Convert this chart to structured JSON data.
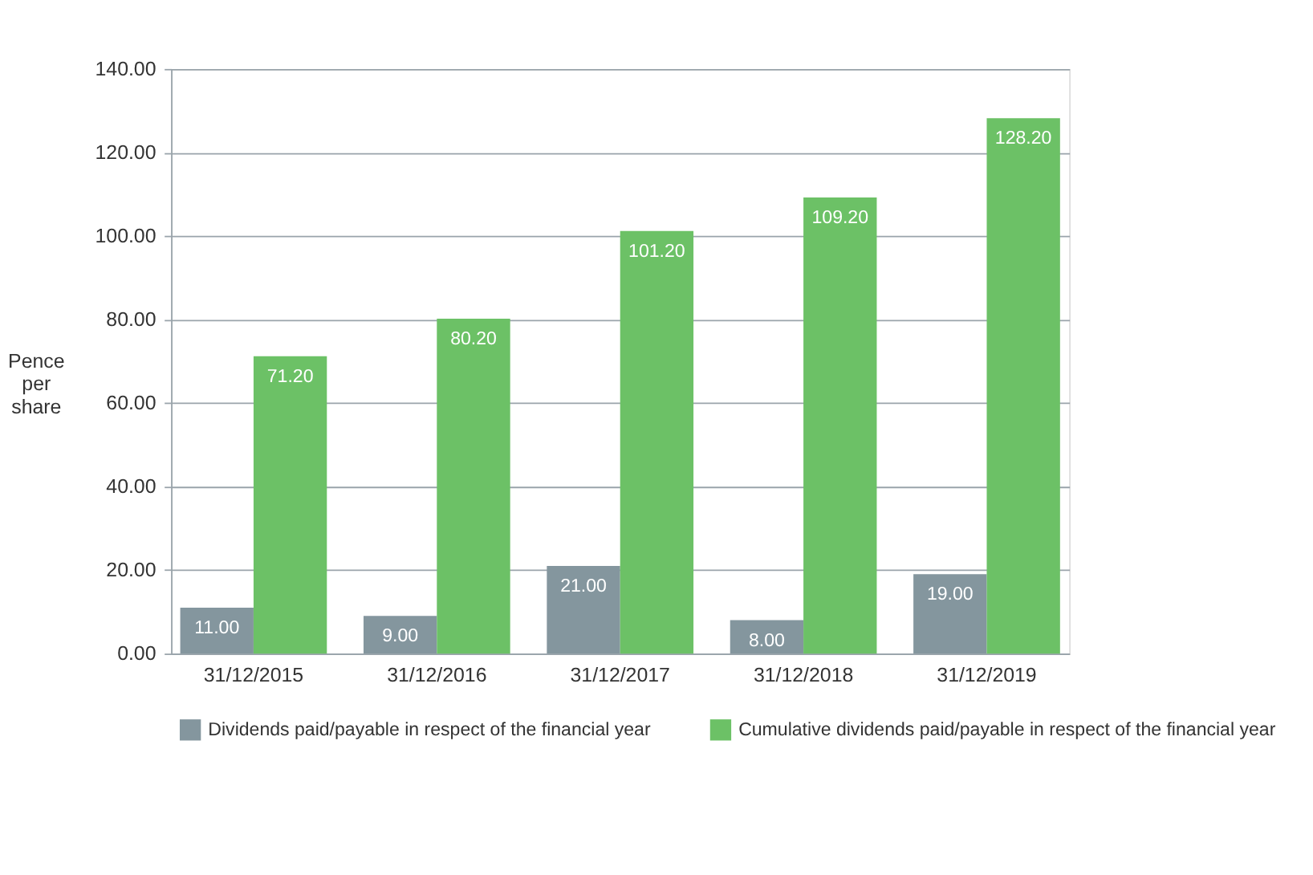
{
  "chart_data": {
    "type": "bar",
    "ylabel": "Pence per share",
    "categories": [
      "31/12/2015",
      "31/12/2016",
      "31/12/2017",
      "31/12/2018",
      "31/12/2019"
    ],
    "series": [
      {
        "name": "Dividends paid/payable in respect of the financial year",
        "color": "#84969e",
        "values": [
          11.0,
          9.0,
          21.0,
          8.0,
          19.0
        ]
      },
      {
        "name": "Cumulative dividends paid/payable in respect of the financial year",
        "color": "#6cc166",
        "values": [
          71.2,
          80.2,
          101.2,
          109.2,
          128.2
        ]
      }
    ],
    "ylim": [
      0,
      140
    ],
    "yticks": [
      {
        "value": 0,
        "label": "0.00"
      },
      {
        "value": 20,
        "label": "20.00"
      },
      {
        "value": 40,
        "label": "40.00"
      },
      {
        "value": 60,
        "label": "60.00"
      },
      {
        "value": 80,
        "label": "80.00"
      },
      {
        "value": 100,
        "label": "100.00"
      },
      {
        "value": 120,
        "label": "120.00"
      },
      {
        "value": 140,
        "label": "140.00"
      }
    ],
    "value_labels": [
      [
        "11.00",
        "9.00",
        "21.00",
        "8.00",
        "19.00"
      ],
      [
        "71.20",
        "80.20",
        "101.20",
        "109.20",
        "128.20"
      ]
    ],
    "grid": "y",
    "legend": "bottom"
  }
}
